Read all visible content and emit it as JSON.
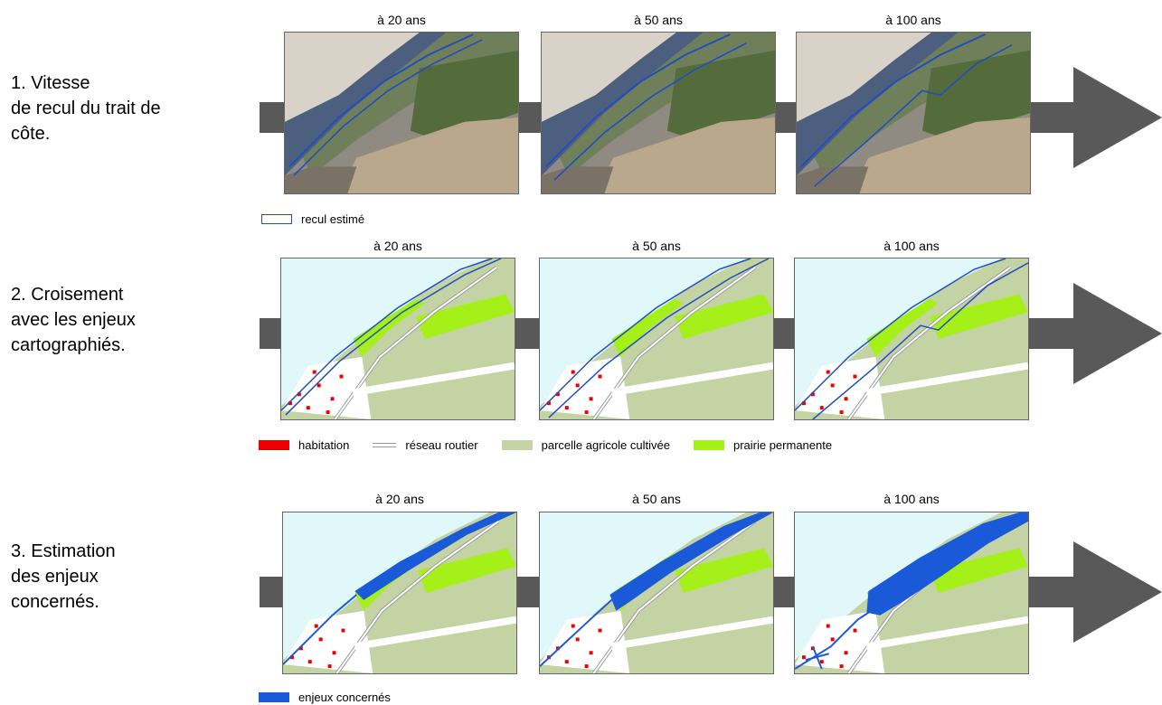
{
  "steps": [
    {
      "lines": [
        "1. Vitesse",
        "de recul du trait de",
        "côte."
      ]
    },
    {
      "lines": [
        "2. Croisement",
        "avec les enjeux",
        "cartographiés."
      ]
    },
    {
      "lines": [
        "3. Estimation",
        "des enjeux",
        "concernés."
      ]
    }
  ],
  "time_labels": [
    "à 20 ans",
    "à 50 ans",
    "à 100 ans"
  ],
  "legend_recul": "recul estimé",
  "legend_enjeux_map": [
    {
      "label": "habitation",
      "color": "#ee0000"
    },
    {
      "label": "réseau routier",
      "color": "#9a9a9a"
    },
    {
      "label": "parcelle agricole cultivée",
      "color": "#c3d3a3"
    },
    {
      "label": "prairie permanente",
      "color": "#a6f01a"
    }
  ],
  "legend_enjeux_concernes": "enjeux concernés",
  "colors": {
    "arrow": "#595959",
    "sea": "#e0f8fa",
    "farmland": "#c3d3a3",
    "meadow": "#a6f01a",
    "housing": "#ee0000",
    "recul_line": "#1f4ec0",
    "concerned": "#1a5ad8"
  }
}
